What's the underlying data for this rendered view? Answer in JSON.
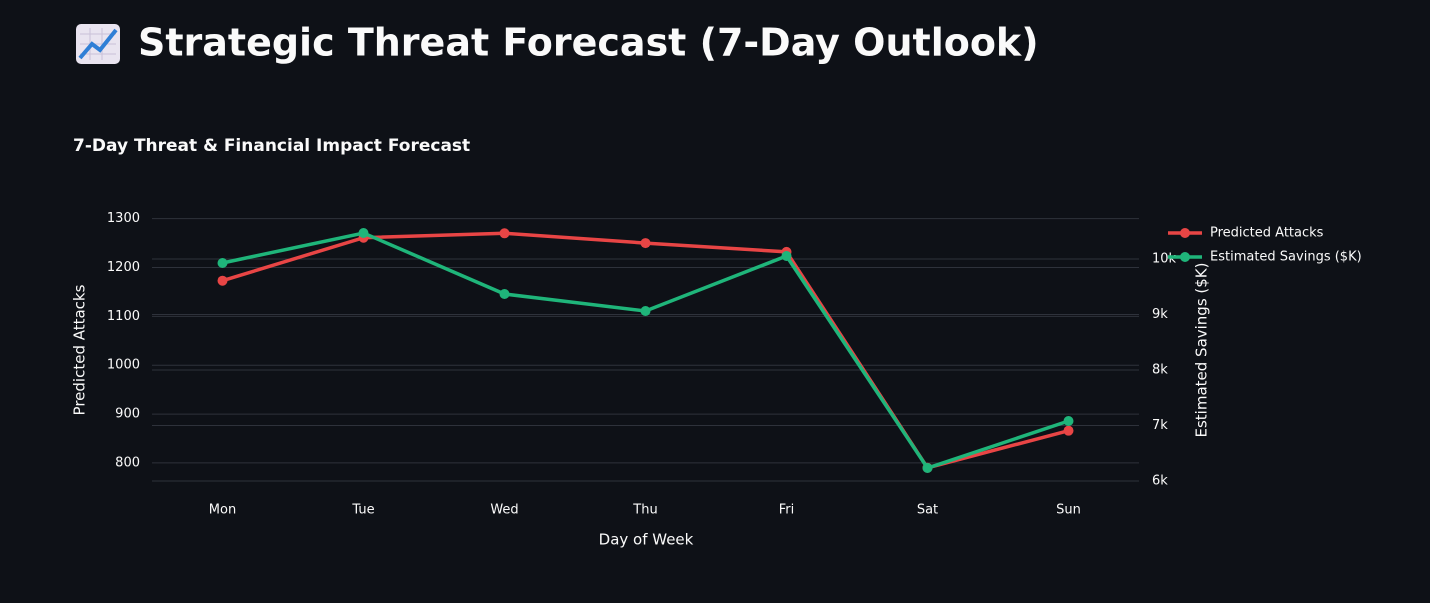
{
  "page": {
    "title": "Strategic Threat Forecast (7-Day Outlook)"
  },
  "chart_data": {
    "type": "line",
    "title": "7-Day Threat & Financial Impact Forecast",
    "x_label": "Day of Week",
    "y_label": "Predicted Attacks",
    "y2_label": "Estimated Savings ($K)",
    "categories": [
      "Mon",
      "Tue",
      "Wed",
      "Thu",
      "Fri",
      "Sat",
      "Sun"
    ],
    "series": [
      {
        "name": "Predicted Attacks",
        "color": "#e84545",
        "values": [
          1173,
          1261,
          1270,
          1250,
          1232,
          790,
          866
        ]
      },
      {
        "name": "Estimated Savings ($K)",
        "color": "#1fb57a",
        "axis": "y2",
        "values": [
          9928,
          10468,
          9369,
          9063,
          10054,
          6234,
          7081
        ]
      }
    ],
    "ylim": [
      763,
      1330
    ],
    "yticks": [
      800,
      900,
      1000,
      1100,
      1200,
      1300
    ],
    "y2lim": [
      6000,
      10991
    ],
    "y2ticks": [
      {
        "value": 6000,
        "label": "6k"
      },
      {
        "value": 7000,
        "label": "7k"
      },
      {
        "value": 8000,
        "label": "8k"
      },
      {
        "value": 9000,
        "label": "9k"
      },
      {
        "value": 10000,
        "label": "10k"
      }
    ],
    "grid": true,
    "legend": "top-right"
  }
}
